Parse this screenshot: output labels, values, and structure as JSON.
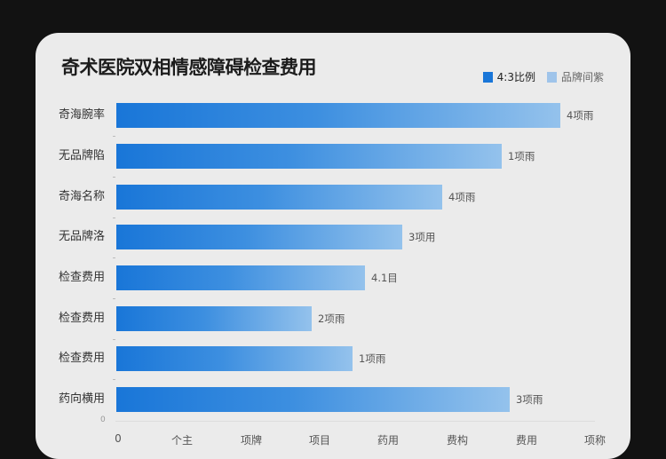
{
  "chart_data": {
    "type": "bar",
    "orientation": "horizontal",
    "title": "奇术医院双相情感障碍检查费用",
    "legend": [
      {
        "label": "4:3比例",
        "color": "#1976d8"
      },
      {
        "label": "品牌间紫",
        "color": "#9fc4ea"
      }
    ],
    "legend_position": "top-right",
    "categories": [
      "奇海腕率",
      "无品牌陷",
      "奇海名称",
      "无品牌洛",
      "检查费用",
      "检查费用",
      "检查费用",
      "药向横用"
    ],
    "values": [
      500,
      434,
      367,
      322,
      280,
      220,
      266,
      443
    ],
    "value_labels": [
      "4项雨",
      "1项雨",
      "4项雨",
      "3项用",
      "4.1目",
      "2项雨",
      "1项雨",
      "3项雨"
    ],
    "x_tick_labels": [
      "0",
      "个主",
      "项牌",
      "项目",
      "药用",
      "费构",
      "费用",
      "项称"
    ],
    "xlabel": "",
    "ylabel": "",
    "xlim": [
      0,
      540
    ],
    "grid": false,
    "bar_gradient": [
      "#1976d8",
      "#94c2ec"
    ]
  },
  "axis": {
    "zero_marker": "0"
  }
}
